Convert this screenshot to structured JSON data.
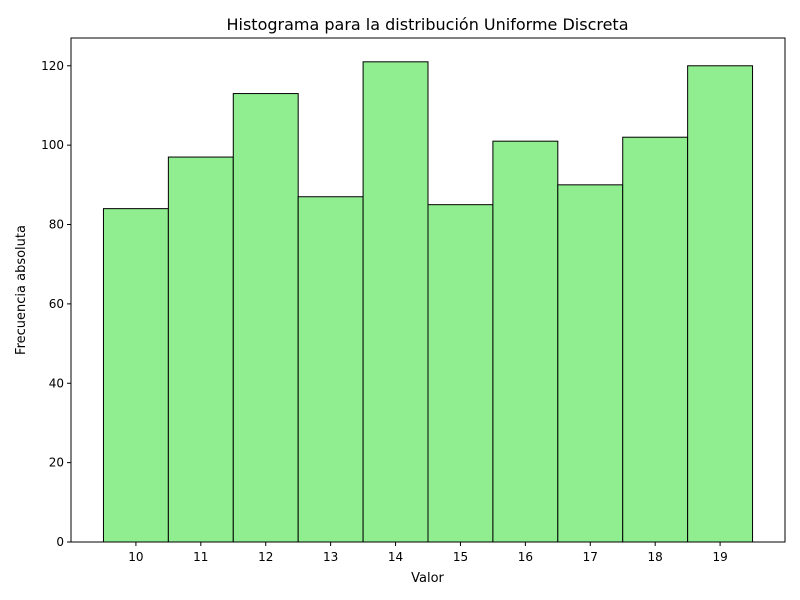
{
  "chart_data": {
    "type": "bar",
    "title": "Histograma para la distribución Uniforme Discreta",
    "xlabel": "Valor",
    "ylabel": "Frecuencia absoluta",
    "categories": [
      "10",
      "11",
      "12",
      "13",
      "14",
      "15",
      "16",
      "17",
      "18",
      "19"
    ],
    "x": [
      10,
      11,
      12,
      13,
      14,
      15,
      16,
      17,
      18,
      19
    ],
    "values": [
      84,
      97,
      113,
      87,
      121,
      85,
      101,
      90,
      102,
      120
    ],
    "xlim": [
      9.0,
      20.0
    ],
    "ylim": [
      0,
      127
    ],
    "yticks": [
      0,
      20,
      40,
      60,
      80,
      100,
      120
    ],
    "ytick_labels": [
      "0",
      "20",
      "40",
      "60",
      "80",
      "100",
      "120"
    ],
    "grid": false,
    "colors": {
      "bar_fill": "#90ee90",
      "bar_edge": "#000000"
    }
  }
}
